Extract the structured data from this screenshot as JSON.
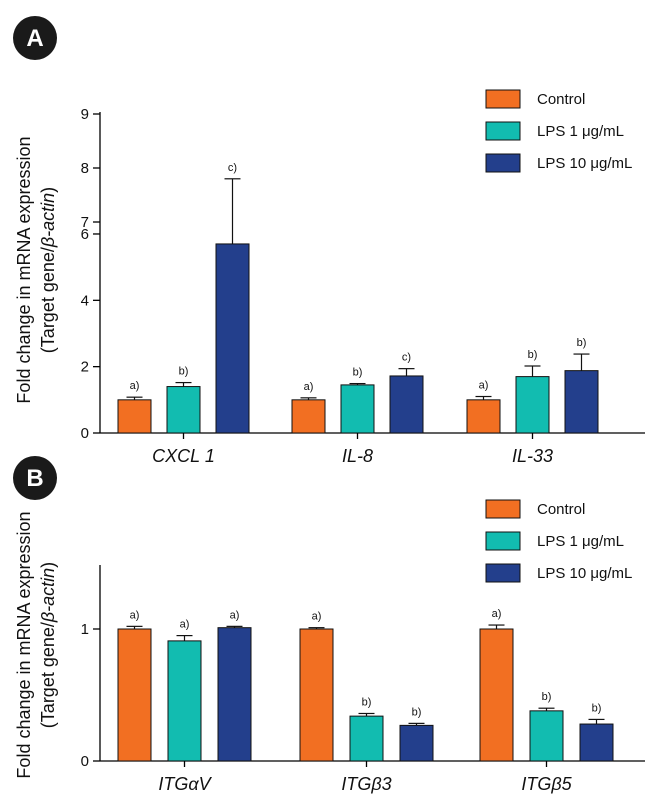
{
  "panels": [
    {
      "label": "A"
    },
    {
      "label": "B"
    }
  ],
  "ylabel": {
    "line1": "Fold change in mRNA expression",
    "line2_prefix": "(Target gene/",
    "line2_italic": "β-actin",
    "line2_suffix": ")"
  },
  "legend": {
    "items": [
      "Control",
      "LPS 1 μg/mL",
      "LPS 10 μg/mL"
    ]
  },
  "colors": {
    "control": "#f26f22",
    "lps1": "#12bcb0",
    "lps10": "#233f8c"
  },
  "chart_data": [
    {
      "type": "bar",
      "panel": "A",
      "categories": [
        "CXCL 1",
        "IL-8",
        "IL-33"
      ],
      "series": [
        {
          "name": "Control",
          "values": [
            1.0,
            1.0,
            1.0
          ],
          "errors": [
            0.08,
            0.06,
            0.1
          ],
          "labels": [
            "a)",
            "a)",
            "a)"
          ]
        },
        {
          "name": "LPS 1 μg/mL",
          "values": [
            1.4,
            1.45,
            1.7
          ],
          "errors": [
            0.12,
            0.04,
            0.32
          ],
          "labels": [
            "b)",
            "b)",
            "b)"
          ]
        },
        {
          "name": "LPS 10 μg/mL",
          "values": [
            5.7,
            1.72,
            1.88
          ],
          "errors": [
            2.1,
            0.22,
            0.5
          ],
          "labels": [
            "c)",
            "c)",
            "b)"
          ]
        }
      ],
      "yticks": [
        "0",
        "2",
        "4",
        "6",
        "7",
        "8",
        "9"
      ],
      "legend_position": "top-right"
    },
    {
      "type": "bar",
      "panel": "B",
      "categories": [
        "ITGαV",
        "ITGβ3",
        "ITGβ5"
      ],
      "series": [
        {
          "name": "Control",
          "values": [
            1.0,
            1.0,
            1.0
          ],
          "errors": [
            0.02,
            0.01,
            0.03
          ],
          "labels": [
            "a)",
            "a)",
            "a)"
          ]
        },
        {
          "name": "LPS 1 μg/mL",
          "values": [
            0.91,
            0.34,
            0.38
          ],
          "errors": [
            0.04,
            0.02,
            0.02
          ],
          "labels": [
            "a)",
            "b)",
            "b)"
          ]
        },
        {
          "name": "LPS 10 μg/mL",
          "values": [
            1.01,
            0.27,
            0.28
          ],
          "errors": [
            0.01,
            0.015,
            0.035
          ],
          "labels": [
            "a)",
            "b)",
            "b)"
          ]
        }
      ],
      "yticks": [
        "0",
        "1"
      ],
      "ylim": [
        0,
        1.5
      ],
      "legend_position": "top-right"
    }
  ]
}
